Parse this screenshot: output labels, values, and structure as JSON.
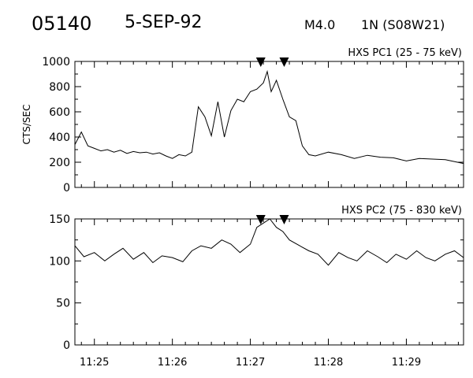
{
  "header": {
    "event_id": "05140",
    "date": "5-SEP-92",
    "flare_class": "M4.0",
    "location": "1N (S08W21)"
  },
  "chart_data": [
    {
      "type": "line",
      "title": "HXS PC1 (25 - 75 keV)",
      "ylabel": "CTS/SEC",
      "xlabel": "",
      "xlim": [
        "11:24:45",
        "11:29:44"
      ],
      "ylim": [
        0,
        1000
      ],
      "yticks": [
        0,
        200,
        400,
        600,
        800,
        1000
      ],
      "xticks": [
        "11:25",
        "11:26",
        "11:27",
        "11:28",
        "11:29"
      ],
      "marker_times": [
        "11:27:08",
        "11:27:26"
      ],
      "series": [
        {
          "x": [
            "11:24:45",
            "11:24:50",
            "11:24:55",
            "11:25:00",
            "11:25:05",
            "11:25:10",
            "11:25:15",
            "11:25:20",
            "11:25:25",
            "11:25:30",
            "11:25:35",
            "11:25:40",
            "11:25:45",
            "11:25:50",
            "11:25:55",
            "11:26:00",
            "11:26:05",
            "11:26:10",
            "11:26:15",
            "11:26:20",
            "11:26:25",
            "11:26:30",
            "11:26:35",
            "11:26:40",
            "11:26:45",
            "11:26:50",
            "11:26:55",
            "11:27:00",
            "11:27:05",
            "11:27:10",
            "11:27:13",
            "11:27:16",
            "11:27:20",
            "11:27:25",
            "11:27:30",
            "11:27:35",
            "11:27:40",
            "11:27:45",
            "11:27:50",
            "11:28:00",
            "11:28:10",
            "11:28:20",
            "11:28:30",
            "11:28:40",
            "11:28:50",
            "11:29:00",
            "11:29:10",
            "11:29:20",
            "11:29:30",
            "11:29:44"
          ],
          "y": [
            340,
            440,
            330,
            310,
            290,
            300,
            280,
            295,
            270,
            285,
            275,
            280,
            265,
            275,
            250,
            230,
            260,
            250,
            280,
            640,
            560,
            410,
            680,
            400,
            610,
            700,
            680,
            760,
            780,
            830,
            920,
            760,
            850,
            700,
            560,
            530,
            330,
            260,
            250,
            280,
            260,
            230,
            255,
            240,
            235,
            210,
            230,
            225,
            220,
            190
          ]
        }
      ]
    },
    {
      "type": "line",
      "title": "HXS PC2 (75 - 830 keV)",
      "ylabel": "",
      "xlabel": "",
      "xlim": [
        "11:24:45",
        "11:29:44"
      ],
      "ylim": [
        0,
        150
      ],
      "yticks": [
        0,
        50,
        100,
        150
      ],
      "xticks": [
        "11:25",
        "11:26",
        "11:27",
        "11:28",
        "11:29"
      ],
      "marker_times": [
        "11:27:08",
        "11:27:26"
      ],
      "series": [
        {
          "x": [
            "11:24:45",
            "11:24:52",
            "11:25:00",
            "11:25:08",
            "11:25:15",
            "11:25:22",
            "11:25:30",
            "11:25:38",
            "11:25:45",
            "11:25:52",
            "11:26:00",
            "11:26:08",
            "11:26:15",
            "11:26:22",
            "11:26:30",
            "11:26:38",
            "11:26:45",
            "11:26:52",
            "11:27:00",
            "11:27:05",
            "11:27:10",
            "11:27:15",
            "11:27:20",
            "11:27:25",
            "11:27:30",
            "11:27:38",
            "11:27:45",
            "11:27:52",
            "11:28:00",
            "11:28:08",
            "11:28:15",
            "11:28:22",
            "11:28:30",
            "11:28:38",
            "11:28:45",
            "11:28:52",
            "11:29:00",
            "11:29:08",
            "11:29:15",
            "11:29:22",
            "11:29:30",
            "11:29:37",
            "11:29:44"
          ],
          "y": [
            118,
            105,
            110,
            100,
            108,
            115,
            102,
            110,
            98,
            106,
            104,
            99,
            112,
            118,
            115,
            125,
            120,
            110,
            120,
            140,
            145,
            150,
            140,
            135,
            125,
            118,
            112,
            108,
            95,
            110,
            104,
            100,
            112,
            105,
            98,
            108,
            102,
            112,
            104,
            100,
            108,
            112,
            104
          ]
        }
      ]
    }
  ]
}
